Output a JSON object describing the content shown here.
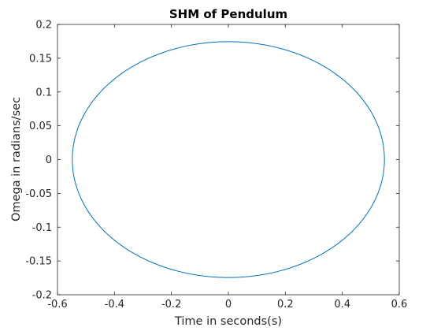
{
  "chart_data": {
    "type": "line",
    "title": "SHM of Pendulum",
    "xlabel": "Time in seconds(s)",
    "ylabel": "Omega in radians/sec",
    "xlim": [
      -0.6,
      0.6
    ],
    "ylim": [
      -0.2,
      0.2
    ],
    "xticks": [
      -0.6,
      -0.4,
      -0.2,
      0,
      0.2,
      0.4,
      0.6
    ],
    "xtick_labels": [
      "-0.6",
      "-0.4",
      "-0.2",
      "0",
      "0.2",
      "0.4",
      "0.6"
    ],
    "yticks": [
      -0.2,
      -0.15,
      -0.1,
      -0.05,
      0,
      0.05,
      0.1,
      0.15,
      0.2
    ],
    "ytick_labels": [
      "-0.2",
      "-0.15",
      "-0.1",
      "-0.05",
      "0",
      "0.05",
      "0.1",
      "0.15",
      "0.2"
    ],
    "grid": false,
    "series": [
      {
        "color": "#0072BD",
        "shape": "ellipse",
        "x_amplitude": 0.548,
        "y_amplitude": 0.1745,
        "x_center": 0,
        "y_center": 0
      }
    ]
  }
}
